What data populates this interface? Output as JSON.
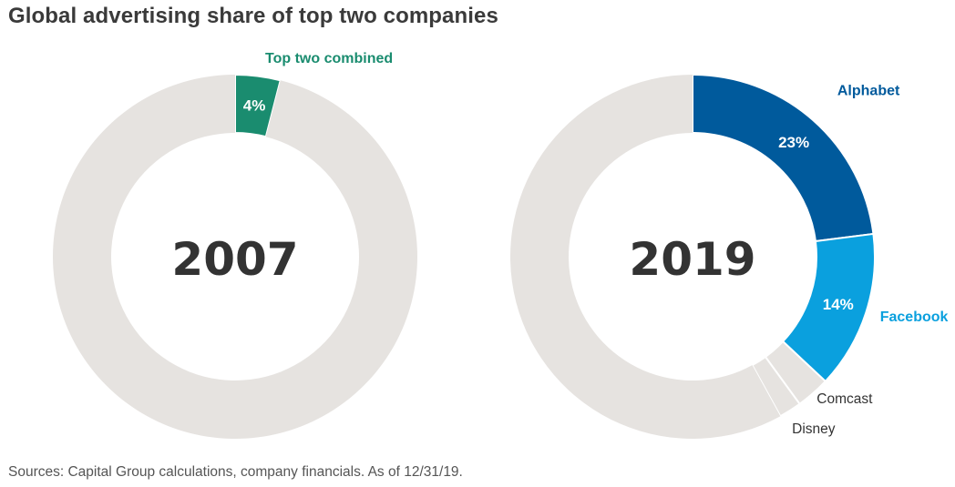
{
  "title": "Global advertising share of top two companies",
  "source": "Sources: Capital Group calculations, company financials. As of 12/31/19.",
  "colors": {
    "background_ring": "#e6e3e0",
    "separator": "#ffffff",
    "top_two": "#1a8c6f",
    "alphabet": "#005a9c",
    "facebook": "#0aa0de",
    "comcast": "#e6e3e0",
    "disney": "#e6e3e0",
    "center_text": "#333333"
  },
  "chart_data": [
    {
      "type": "donut",
      "center_label": "2007",
      "slices": [
        {
          "name": "Top two combined",
          "value": 4,
          "value_label": "4%",
          "color_key": "top_two",
          "label_style": "outside-top"
        },
        {
          "name": "Rest",
          "value": 96,
          "value_label": "",
          "color_key": "background_ring",
          "label_style": "none"
        }
      ]
    },
    {
      "type": "donut",
      "center_label": "2019",
      "slices": [
        {
          "name": "Alphabet",
          "value": 23,
          "value_label": "23%",
          "color_key": "alphabet",
          "label_style": "outside-right"
        },
        {
          "name": "Facebook",
          "value": 14,
          "value_label": "14%",
          "color_key": "facebook",
          "label_style": "outside-right"
        },
        {
          "name": "Comcast",
          "value": 3,
          "value_label": "",
          "color_key": "comcast",
          "label_style": "callout"
        },
        {
          "name": "Disney",
          "value": 2,
          "value_label": "",
          "color_key": "disney",
          "label_style": "callout"
        },
        {
          "name": "Rest",
          "value": 58,
          "value_label": "",
          "color_key": "background_ring",
          "label_style": "none"
        }
      ]
    }
  ]
}
